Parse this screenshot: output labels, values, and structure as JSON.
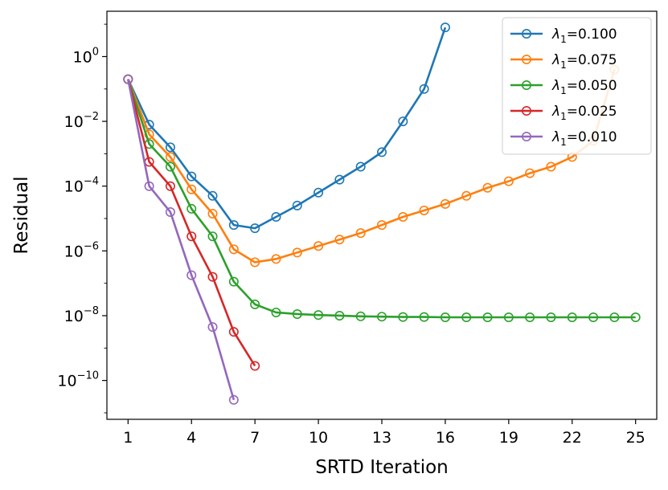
{
  "chart_data": {
    "type": "line",
    "title": "",
    "xlabel": "SRTD Iteration",
    "ylabel": "Residual",
    "yscale": "log",
    "xlim": [
      0,
      26
    ],
    "ylim_log10": [
      -11.2,
      1.4
    ],
    "xticks": [
      1,
      4,
      7,
      10,
      13,
      16,
      19,
      22,
      25
    ],
    "yticks": [
      {
        "base": "10",
        "exp": "0",
        "value_log10": 0
      },
      {
        "base": "10",
        "exp": "−2",
        "value_log10": -2
      },
      {
        "base": "10",
        "exp": "−4",
        "value_log10": -4
      },
      {
        "base": "10",
        "exp": "−6",
        "value_log10": -6
      },
      {
        "base": "10",
        "exp": "−8",
        "value_log10": -8
      },
      {
        "base": "10",
        "exp": "−10",
        "value_log10": -10
      }
    ],
    "legend_position": "top-right",
    "grid": false,
    "marker": "open-circle",
    "series": [
      {
        "name": "λ1=0.100",
        "name_main": "λ",
        "name_sub": "1",
        "name_value": "=0.100",
        "color": "#1f77b4",
        "x": [
          1,
          2,
          3,
          4,
          5,
          6,
          7,
          8,
          9,
          10,
          11,
          12,
          13,
          14,
          15,
          16
        ],
        "log10_y": [
          -0.7,
          -2.1,
          -2.8,
          -3.7,
          -4.3,
          -5.2,
          -5.3,
          -4.95,
          -4.6,
          -4.2,
          -3.8,
          -3.4,
          -2.95,
          -2.0,
          -1.0,
          0.9
        ]
      },
      {
        "name": "λ1=0.075",
        "name_main": "λ",
        "name_sub": "1",
        "name_value": "=0.075",
        "color": "#ff7f0e",
        "x": [
          1,
          2,
          3,
          4,
          5,
          6,
          7,
          8,
          9,
          10,
          11,
          12,
          13,
          14,
          15,
          16,
          17,
          18,
          19,
          20,
          21,
          22,
          23,
          24
        ],
        "log10_y": [
          -0.7,
          -2.4,
          -3.1,
          -4.1,
          -4.85,
          -5.95,
          -6.35,
          -6.25,
          -6.05,
          -5.85,
          -5.65,
          -5.45,
          -5.2,
          -4.95,
          -4.75,
          -4.55,
          -4.3,
          -4.05,
          -3.85,
          -3.6,
          -3.4,
          -3.1,
          -2.6,
          -0.4
        ]
      },
      {
        "name": "λ1=0.050",
        "name_main": "λ",
        "name_sub": "1",
        "name_value": "=0.050",
        "color": "#2ca02c",
        "x": [
          1,
          2,
          3,
          4,
          5,
          6,
          7,
          8,
          9,
          10,
          11,
          12,
          13,
          14,
          15,
          16,
          17,
          18,
          19,
          20,
          21,
          22,
          23,
          24,
          25
        ],
        "log10_y": [
          -0.7,
          -2.7,
          -3.4,
          -4.7,
          -5.55,
          -6.95,
          -7.65,
          -7.9,
          -7.95,
          -7.98,
          -8.0,
          -8.02,
          -8.03,
          -8.04,
          -8.04,
          -8.05,
          -8.05,
          -8.05,
          -8.05,
          -8.05,
          -8.05,
          -8.05,
          -8.05,
          -8.05,
          -8.05
        ]
      },
      {
        "name": "λ1=0.025",
        "name_main": "λ",
        "name_sub": "1",
        "name_value": "=0.025",
        "color": "#d62728",
        "x": [
          1,
          2,
          3,
          4,
          5,
          6,
          7
        ],
        "log10_y": [
          -0.7,
          -3.25,
          -4.0,
          -5.55,
          -6.8,
          -8.5,
          -9.55
        ]
      },
      {
        "name": "λ1=0.010",
        "name_main": "λ",
        "name_sub": "1",
        "name_value": "=0.010",
        "color": "#9467bd",
        "x": [
          1,
          2,
          3,
          4,
          5,
          6
        ],
        "log10_y": [
          -0.7,
          -4.0,
          -4.8,
          -6.75,
          -8.35,
          -10.6
        ]
      }
    ]
  }
}
